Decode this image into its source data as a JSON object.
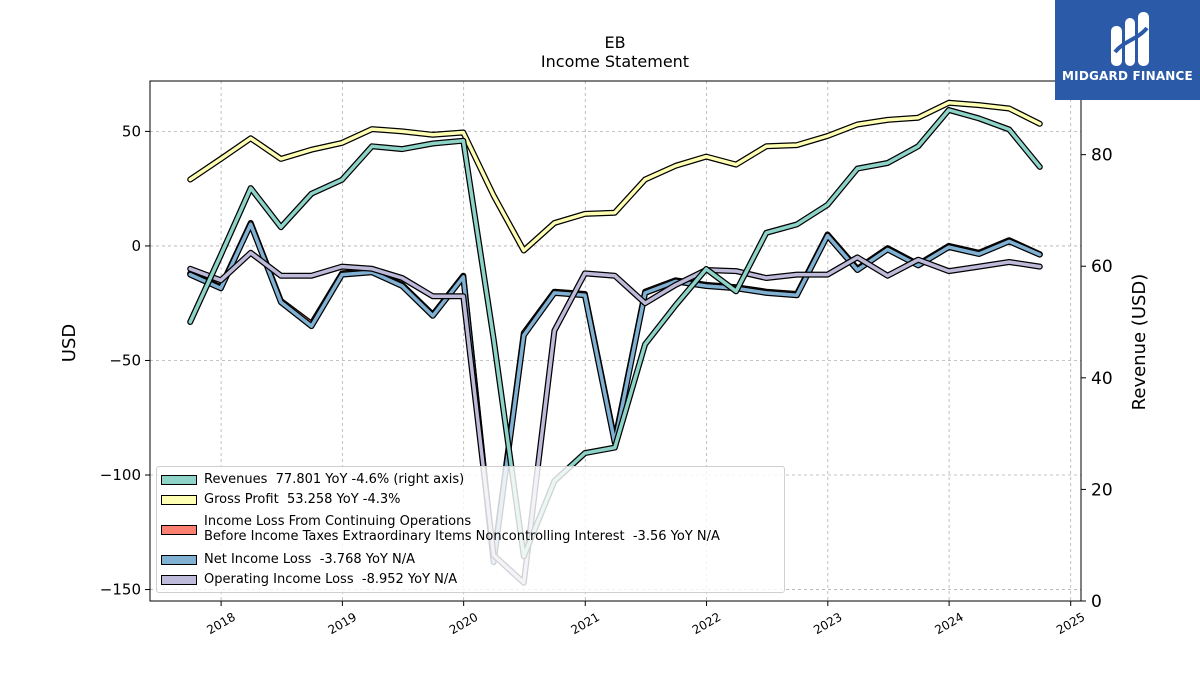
{
  "title": "EB",
  "subtitle": "Income Statement",
  "logo": {
    "text": "MIDGARD FINANCE",
    "icon": "midgard-finance-logo-icon"
  },
  "chart_data": {
    "type": "line",
    "xlabel": "",
    "ylabel_left": "USD",
    "ylabel_right": "Revenue (USD)",
    "ylim_left": [
      -155,
      72
    ],
    "ylim_right": [
      0,
      93.2
    ],
    "xlim": [
      "2017-06-01",
      "2025-02-01"
    ],
    "x_ticks": [
      "2018",
      "2019",
      "2020",
      "2021",
      "2022",
      "2023",
      "2024",
      "2025"
    ],
    "y_ticks_left": [
      50,
      0,
      -50,
      -100,
      -150
    ],
    "y_tick_labels_left": [
      "50",
      "0",
      "−50",
      "−100",
      "−150"
    ],
    "y_ticks_right": [
      80,
      60,
      40,
      20,
      0
    ],
    "grid": true,
    "legend_position": "lower-left",
    "dates": [
      "2017-09-30",
      "2017-12-31",
      "2018-03-31",
      "2018-06-30",
      "2018-09-30",
      "2018-12-31",
      "2019-03-31",
      "2019-06-30",
      "2019-09-30",
      "2019-12-31",
      "2020-03-31",
      "2020-06-30",
      "2020-09-30",
      "2020-12-31",
      "2021-03-31",
      "2021-06-30",
      "2021-09-30",
      "2021-12-31",
      "2022-03-31",
      "2022-06-30",
      "2022-09-30",
      "2022-12-31",
      "2023-03-31",
      "2023-06-30",
      "2023-09-30",
      "2023-12-31",
      "2024-03-31",
      "2024-06-30",
      "2024-09-30"
    ],
    "series": [
      {
        "name": "Revenues  77.801 YoY -4.6% (right axis)",
        "axis": "right",
        "color": "#8dd3c7",
        "values": [
          50.0,
          62.0,
          74.0,
          67.0,
          73.0,
          75.5,
          81.5,
          81.0,
          82.0,
          82.5,
          47.0,
          8.0,
          21.5,
          26.5,
          27.5,
          46.0,
          53.0,
          59.5,
          55.5,
          66.0,
          67.5,
          71.0,
          77.5,
          78.5,
          81.5,
          88.0,
          86.5,
          84.5,
          77.8
        ]
      },
      {
        "name": "Gross Profit  53.258 YoY -4.3%",
        "axis": "left",
        "color": "#ffffb3",
        "values": [
          29.0,
          38.0,
          47.0,
          38.0,
          42.0,
          45.0,
          51.0,
          50.0,
          48.5,
          49.5,
          22.0,
          -2.0,
          10.0,
          14.0,
          14.5,
          29.0,
          35.0,
          39.0,
          35.5,
          43.5,
          44.0,
          48.0,
          53.0,
          55.0,
          56.0,
          62.5,
          61.5,
          60.0,
          53.3
        ]
      },
      {
        "name": "Income Loss From Continuing Operations\nBefore Income Taxes Extraordinary Items Noncontrolling Interest  -3.56 YoY N/A",
        "axis": "left",
        "color": "#fb8072",
        "values": [
          -12.0,
          -18.0,
          10.0,
          -24.0,
          -34.0,
          -12.0,
          -11.0,
          -17.0,
          -30.0,
          -13.0,
          -137.0,
          -38.0,
          -20.0,
          -21.0,
          -85.0,
          -20.0,
          -15.0,
          -17.0,
          -18.0,
          -20.0,
          -21.0,
          5.0,
          -10.0,
          -1.0,
          -8.0,
          0.0,
          -3.0,
          2.5,
          -3.6
        ]
      },
      {
        "name": "Net Income Loss  -3.768 YoY N/A",
        "axis": "left",
        "color": "#80b1d3",
        "values": [
          -12.5,
          -18.5,
          9.5,
          -24.5,
          -35.0,
          -12.5,
          -11.5,
          -17.5,
          -30.5,
          -13.5,
          -138.0,
          -39.0,
          -20.5,
          -21.5,
          -86.0,
          -20.5,
          -15.5,
          -17.5,
          -18.5,
          -20.5,
          -21.5,
          4.5,
          -10.5,
          -1.5,
          -8.5,
          -0.5,
          -3.5,
          2.0,
          -3.8
        ]
      },
      {
        "name": "Operating Income Loss  -8.952 YoY N/A",
        "axis": "left",
        "color": "#bebada",
        "values": [
          -10.0,
          -15.0,
          -3.0,
          -13.0,
          -13.0,
          -9.0,
          -10.0,
          -14.0,
          -22.0,
          -22.0,
          -135.0,
          -147.0,
          -37.0,
          -12.0,
          -13.0,
          -25.0,
          -17.0,
          -10.5,
          -11.0,
          -14.0,
          -12.5,
          -12.5,
          -5.0,
          -13.0,
          -6.0,
          -11.0,
          -9.0,
          -7.0,
          -9.0
        ]
      }
    ]
  }
}
